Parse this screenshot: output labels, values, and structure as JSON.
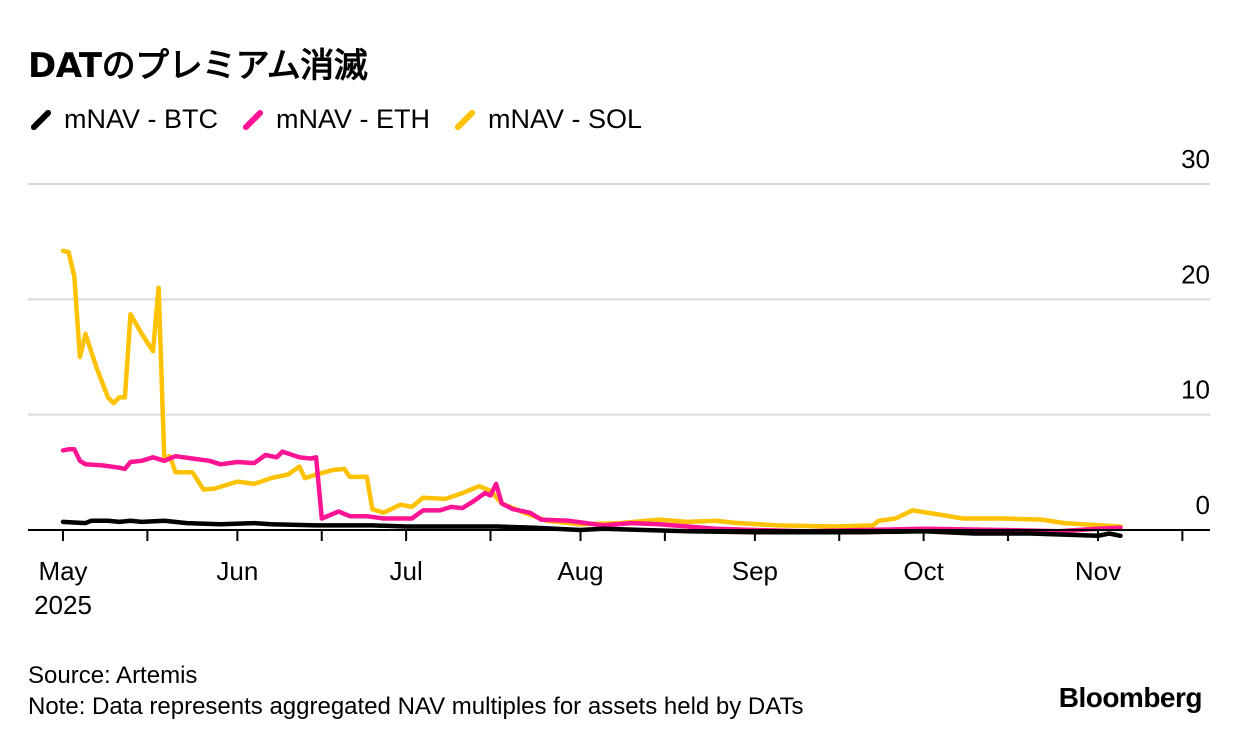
{
  "chart_data": {
    "type": "line",
    "title": "DATのプレミアム消滅",
    "legend_position": "top-left",
    "grid": true,
    "y_axis_side": "right",
    "ylim": [
      0,
      30
    ],
    "yticks": [
      "30",
      "20",
      "10",
      "0"
    ],
    "ytick_values": [
      30,
      20,
      10,
      0
    ],
    "xticks": [
      {
        "date": "2025-05-01",
        "label": "May",
        "sublabel": "2025"
      },
      {
        "date": "2025-06-01",
        "label": "Jun"
      },
      {
        "date": "2025-07-01",
        "label": "Jul"
      },
      {
        "date": "2025-08-01",
        "label": "Aug"
      },
      {
        "date": "2025-09-01",
        "label": "Sep"
      },
      {
        "date": "2025-10-01",
        "label": "Oct"
      },
      {
        "date": "2025-11-01",
        "label": "Nov"
      }
    ],
    "series": [
      {
        "name": "mNAV - SOL",
        "color": "#ffc200",
        "points": [
          [
            "2025-05-01",
            24.2
          ],
          [
            "2025-05-02",
            24.1
          ],
          [
            "2025-05-03",
            22
          ],
          [
            "2025-05-04",
            15
          ],
          [
            "2025-05-05",
            17
          ],
          [
            "2025-05-07",
            14
          ],
          [
            "2025-05-09",
            11.5
          ],
          [
            "2025-05-10",
            11
          ],
          [
            "2025-05-11",
            11.5
          ],
          [
            "2025-05-12",
            11.5
          ],
          [
            "2025-05-13",
            18.7
          ],
          [
            "2025-05-15",
            17
          ],
          [
            "2025-05-17",
            15.5
          ],
          [
            "2025-05-18",
            21
          ],
          [
            "2025-05-19",
            6.2
          ],
          [
            "2025-05-20",
            6.4
          ],
          [
            "2025-05-21",
            5
          ],
          [
            "2025-05-24",
            5
          ],
          [
            "2025-05-26",
            3.5
          ],
          [
            "2025-05-28",
            3.6
          ],
          [
            "2025-06-01",
            4.2
          ],
          [
            "2025-06-04",
            4
          ],
          [
            "2025-06-07",
            4.5
          ],
          [
            "2025-06-10",
            4.8
          ],
          [
            "2025-06-12",
            5.5
          ],
          [
            "2025-06-13",
            4.5
          ],
          [
            "2025-06-15",
            4.8
          ],
          [
            "2025-06-18",
            5.2
          ],
          [
            "2025-06-20",
            5.3
          ],
          [
            "2025-06-21",
            4.6
          ],
          [
            "2025-06-24",
            4.6
          ],
          [
            "2025-06-25",
            1.8
          ],
          [
            "2025-06-27",
            1.5
          ],
          [
            "2025-06-30",
            2.2
          ],
          [
            "2025-07-02",
            2
          ],
          [
            "2025-07-04",
            2.8
          ],
          [
            "2025-07-08",
            2.7
          ],
          [
            "2025-07-11",
            3.2
          ],
          [
            "2025-07-14",
            3.8
          ],
          [
            "2025-07-16",
            3.4
          ],
          [
            "2025-07-18",
            2.3
          ],
          [
            "2025-07-22",
            1.5
          ],
          [
            "2025-07-26",
            0.8
          ],
          [
            "2025-08-01",
            0.5
          ],
          [
            "2025-08-08",
            0.6
          ],
          [
            "2025-08-15",
            0.9
          ],
          [
            "2025-08-20",
            0.7
          ],
          [
            "2025-08-25",
            0.8
          ],
          [
            "2025-08-29",
            0.6
          ],
          [
            "2025-09-05",
            0.4
          ],
          [
            "2025-09-15",
            0.3
          ],
          [
            "2025-09-22",
            0.4
          ],
          [
            "2025-09-23",
            0.8
          ],
          [
            "2025-09-26",
            1
          ],
          [
            "2025-09-29",
            1.7
          ],
          [
            "2025-10-03",
            1.4
          ],
          [
            "2025-10-08",
            1
          ],
          [
            "2025-10-15",
            1
          ],
          [
            "2025-10-22",
            0.9
          ],
          [
            "2025-10-26",
            0.6
          ],
          [
            "2025-11-05",
            0.3
          ]
        ]
      },
      {
        "name": "mNAV - ETH",
        "color": "#ff1493",
        "points": [
          [
            "2025-05-01",
            6.9
          ],
          [
            "2025-05-02",
            7
          ],
          [
            "2025-05-03",
            7
          ],
          [
            "2025-05-04",
            6
          ],
          [
            "2025-05-05",
            5.7
          ],
          [
            "2025-05-08",
            5.6
          ],
          [
            "2025-05-11",
            5.4
          ],
          [
            "2025-05-12",
            5.3
          ],
          [
            "2025-05-13",
            5.9
          ],
          [
            "2025-05-15",
            6
          ],
          [
            "2025-05-17",
            6.3
          ],
          [
            "2025-05-19",
            6
          ],
          [
            "2025-05-21",
            6.4
          ],
          [
            "2025-05-24",
            6.2
          ],
          [
            "2025-05-27",
            6
          ],
          [
            "2025-05-29",
            5.7
          ],
          [
            "2025-06-01",
            5.9
          ],
          [
            "2025-06-04",
            5.8
          ],
          [
            "2025-06-06",
            6.5
          ],
          [
            "2025-06-08",
            6.3
          ],
          [
            "2025-06-09",
            6.8
          ],
          [
            "2025-06-12",
            6.3
          ],
          [
            "2025-06-14",
            6.2
          ],
          [
            "2025-06-15",
            6.3
          ],
          [
            "2025-06-16",
            1
          ],
          [
            "2025-06-19",
            1.6
          ],
          [
            "2025-06-21",
            1.2
          ],
          [
            "2025-06-24",
            1.2
          ],
          [
            "2025-06-27",
            1
          ],
          [
            "2025-07-02",
            1
          ],
          [
            "2025-07-04",
            1.7
          ],
          [
            "2025-07-07",
            1.7
          ],
          [
            "2025-07-09",
            2
          ],
          [
            "2025-07-11",
            1.9
          ],
          [
            "2025-07-13",
            2.5
          ],
          [
            "2025-07-15",
            3.2
          ],
          [
            "2025-07-16",
            3
          ],
          [
            "2025-07-17",
            4
          ],
          [
            "2025-07-18",
            2.3
          ],
          [
            "2025-07-20",
            1.8
          ],
          [
            "2025-07-23",
            1.5
          ],
          [
            "2025-07-25",
            0.9
          ],
          [
            "2025-07-30",
            0.8
          ],
          [
            "2025-08-05",
            0.4
          ],
          [
            "2025-08-10",
            0.6
          ],
          [
            "2025-08-15",
            0.5
          ],
          [
            "2025-08-20",
            0.3
          ],
          [
            "2025-08-25",
            0.1
          ],
          [
            "2025-09-01",
            0
          ],
          [
            "2025-09-10",
            -0.1
          ],
          [
            "2025-09-20",
            0
          ],
          [
            "2025-10-01",
            0.1
          ],
          [
            "2025-10-15",
            0
          ],
          [
            "2025-10-25",
            -0.1
          ],
          [
            "2025-11-01",
            0.1
          ],
          [
            "2025-11-05",
            0.2
          ]
        ]
      },
      {
        "name": "mNAV - BTC",
        "color": "#000000",
        "points": [
          [
            "2025-05-01",
            0.7
          ],
          [
            "2025-05-05",
            0.6
          ],
          [
            "2025-05-06",
            0.8
          ],
          [
            "2025-05-09",
            0.8
          ],
          [
            "2025-05-11",
            0.7
          ],
          [
            "2025-05-13",
            0.8
          ],
          [
            "2025-05-15",
            0.7
          ],
          [
            "2025-05-19",
            0.8
          ],
          [
            "2025-05-23",
            0.6
          ],
          [
            "2025-05-29",
            0.5
          ],
          [
            "2025-06-04",
            0.6
          ],
          [
            "2025-06-07",
            0.5
          ],
          [
            "2025-06-15",
            0.4
          ],
          [
            "2025-06-25",
            0.4
          ],
          [
            "2025-07-01",
            0.3
          ],
          [
            "2025-07-10",
            0.3
          ],
          [
            "2025-07-17",
            0.3
          ],
          [
            "2025-07-24",
            0.2
          ],
          [
            "2025-08-01",
            0
          ],
          [
            "2025-08-05",
            0.1
          ],
          [
            "2025-08-20",
            -0.1
          ],
          [
            "2025-09-01",
            -0.2
          ],
          [
            "2025-09-20",
            -0.2
          ],
          [
            "2025-10-01",
            -0.1
          ],
          [
            "2025-10-10",
            -0.3
          ],
          [
            "2025-10-20",
            -0.3
          ],
          [
            "2025-11-01",
            -0.5
          ],
          [
            "2025-11-03",
            -0.3
          ],
          [
            "2025-11-05",
            -0.5
          ]
        ]
      }
    ]
  },
  "legend": [
    {
      "label": "mNAV - BTC",
      "color": "#000000"
    },
    {
      "label": "mNAV - ETH",
      "color": "#ff1493"
    },
    {
      "label": "mNAV - SOL",
      "color": "#ffc200"
    }
  ],
  "footer": {
    "source": "Source: Artemis",
    "note": "Note: Data represents aggregated NAV multiples for assets held by DATs"
  },
  "brand": "Bloomberg"
}
